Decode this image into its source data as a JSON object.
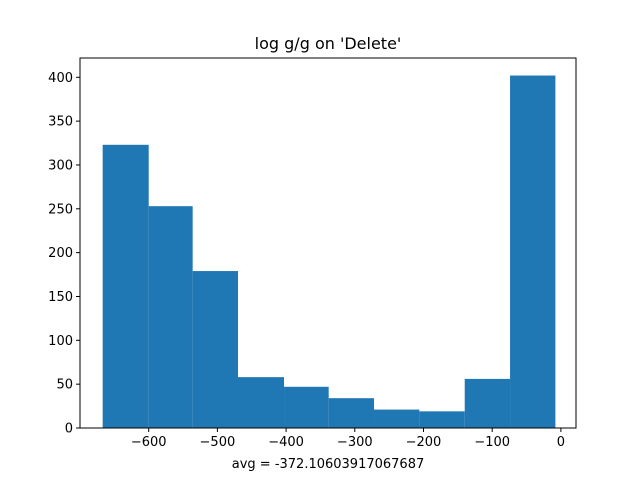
{
  "chart_data": {
    "type": "bar",
    "subtype": "histogram",
    "title": "log g/g on 'Delete'",
    "xlabel": "avg = -372.10603917067687",
    "ylabel": "",
    "bin_edges": [
      -667,
      -600,
      -536,
      -470,
      -403,
      -338,
      -272,
      -206,
      -140,
      -74,
      -8
    ],
    "values": [
      323,
      253,
      179,
      58,
      47,
      34,
      21,
      19,
      56,
      402
    ],
    "xlim": [
      -700,
      22
    ],
    "ylim": [
      0,
      422
    ],
    "xticks": [
      -600,
      -500,
      -400,
      -300,
      -200,
      -100,
      0
    ],
    "xtick_labels": [
      "−600",
      "−500",
      "−400",
      "−300",
      "−200",
      "−100",
      "0"
    ],
    "yticks": [
      0,
      50,
      100,
      150,
      200,
      250,
      300,
      350,
      400
    ],
    "ytick_labels": [
      "0",
      "50",
      "100",
      "150",
      "200",
      "250",
      "300",
      "350",
      "400"
    ],
    "bar_color": "#1f77b4",
    "grid": false,
    "legend": "none"
  }
}
